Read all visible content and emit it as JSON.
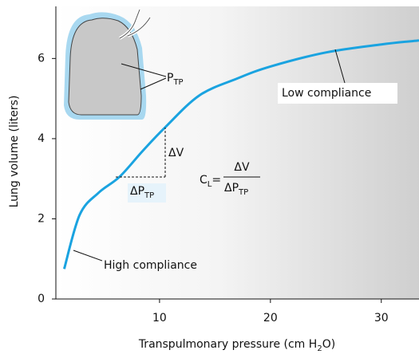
{
  "chart_data": {
    "type": "line",
    "x_axis_label": [
      "Transpulmonary pressure (cm H",
      "2",
      "O)"
    ],
    "y_axis_label": "Lung volume (liters)",
    "xlim": [
      0.65,
      33.4
    ],
    "ylim": [
      0,
      7.3
    ],
    "xticks": [
      10,
      20,
      30
    ],
    "yticks": [
      0,
      2,
      4,
      6
    ],
    "series": [
      {
        "name": "Lung compliance curve",
        "color": "#1aa3e0",
        "x": [
          1.4,
          2.8,
          4.5,
          6.4,
          8.5,
          10.5,
          13.6,
          17,
          20,
          25,
          30,
          33.4
        ],
        "values": [
          0.75,
          2.1,
          2.65,
          3.05,
          3.7,
          4.28,
          5.08,
          5.5,
          5.8,
          6.15,
          6.35,
          6.45
        ]
      }
    ],
    "annotations": {
      "low": "Low compliance",
      "high": "High compliance",
      "ptp": [
        "P",
        "TP"
      ],
      "dv": "ΔV",
      "dptp": [
        "ΔP",
        "TP"
      ],
      "formula_lhs": [
        "C",
        "L",
        "="
      ],
      "formula_num": "ΔV",
      "formula_den": [
        "ΔP",
        "TP"
      ]
    }
  }
}
